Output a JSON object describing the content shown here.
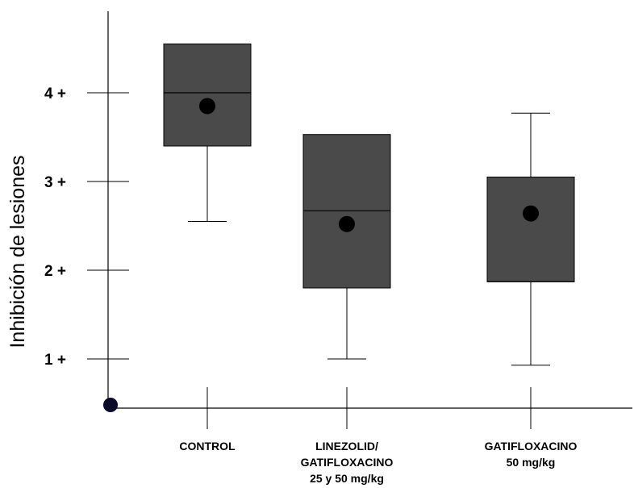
{
  "chart_data": {
    "type": "box",
    "ylabel": "Inhibición de lesiones",
    "ytick_labels": [
      "1 +",
      "2 +",
      "3 +",
      "4 +"
    ],
    "yticks": [
      1,
      2,
      3,
      4
    ],
    "ylim": [
      0.45,
      5.0
    ],
    "categories": [
      [
        "CONTROL"
      ],
      [
        "LINEZOLID/",
        "GATIFLOXACINO",
        "25 y 50 mg/kg"
      ],
      [
        "GATIFLOXACINO",
        "50 mg/kg"
      ]
    ],
    "boxes": [
      {
        "whisker_low": 2.55,
        "q1": 3.4,
        "median": 4.0,
        "q3": 4.55,
        "whisker_high": 4.55,
        "mean": 3.85
      },
      {
        "whisker_low": 1.0,
        "q1": 1.8,
        "median": 2.67,
        "q3": 3.53,
        "whisker_high": 3.53,
        "mean": 2.52
      },
      {
        "whisker_low": 0.93,
        "q1": 1.87,
        "median": 1.87,
        "q3": 3.05,
        "whisker_high": 3.77,
        "mean": 2.64
      }
    ],
    "origin_marker": 0.48,
    "colors": {
      "box_fill": "#4a4a4a",
      "line": "#000000",
      "mean_marker": "#000000",
      "origin_marker": "#0a0a2a"
    }
  }
}
